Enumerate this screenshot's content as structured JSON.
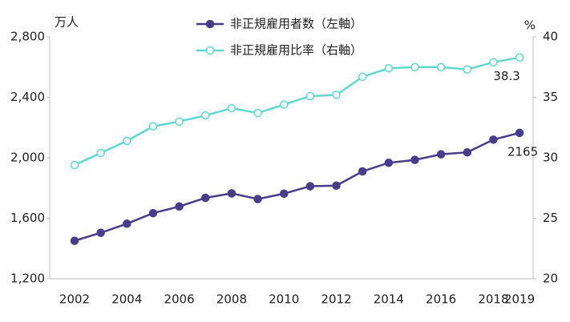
{
  "chart_data": {
    "type": "line",
    "y_label": "万人",
    "y2_label": "%",
    "categories": [
      "2002",
      null,
      "2004",
      null,
      "2006",
      null,
      "2008",
      null,
      "2010",
      null,
      "2012",
      null,
      "2014",
      null,
      "2016",
      null,
      "2018",
      "2019"
    ],
    "series": [
      {
        "name": "非正規雇用者数（左軸）",
        "color": "#483d8b",
        "marker_fill": "#483d8b",
        "values": [
          1451,
          1504,
          1564,
          1634,
          1678,
          1735,
          1765,
          1727,
          1763,
          1812,
          1816,
          1910,
          1967,
          1986,
          2023,
          2036,
          2120,
          2165
        ]
      },
      {
        "name": "非正規雇用比率（右軸）",
        "color": "#5fd8d2",
        "marker_fill": "#ffffff",
        "axis": "y2",
        "values": [
          29.4,
          30.4,
          31.4,
          32.6,
          33.0,
          33.5,
          34.1,
          33.7,
          34.4,
          35.1,
          35.2,
          36.7,
          37.4,
          37.5,
          37.5,
          37.3,
          37.9,
          38.3
        ]
      }
    ],
    "ylim": [
      1200,
      2800
    ],
    "yticks": [
      {
        "value": 1200,
        "label": "1,200"
      },
      {
        "value": 1600,
        "label": "1,600"
      },
      {
        "value": 2000,
        "label": "2,000"
      },
      {
        "value": 2400,
        "label": "2,400"
      },
      {
        "value": 2800,
        "label": "2,800"
      }
    ],
    "y2lim": [
      20,
      40
    ],
    "y2ticks": [
      20,
      25,
      30,
      35,
      40
    ],
    "legend": "top",
    "grid": false
  }
}
